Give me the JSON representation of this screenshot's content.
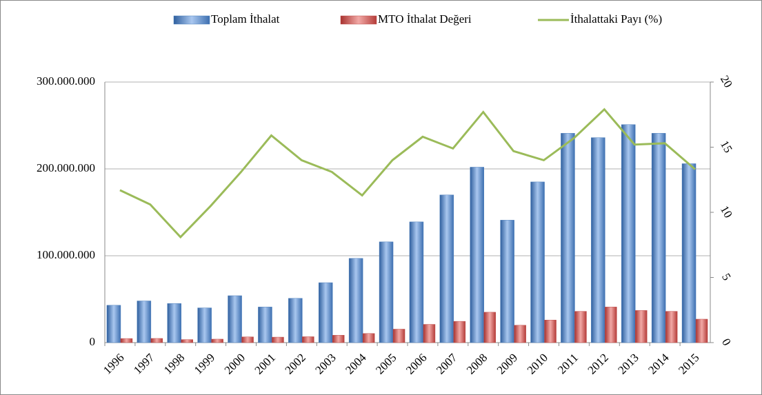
{
  "chart_data": {
    "type": "bar",
    "categories": [
      "1996",
      "1997",
      "1998",
      "1999",
      "2000",
      "2001",
      "2002",
      "2003",
      "2004",
      "2005",
      "2006",
      "2007",
      "2008",
      "2009",
      "2010",
      "2011",
      "2012",
      "2013",
      "2014",
      "2015"
    ],
    "series": [
      {
        "name": "Toplam İthalat",
        "color": "#4f81bd",
        "values": [
          43000000,
          48000000,
          45000000,
          40000000,
          54000000,
          41000000,
          51000000,
          69000000,
          97000000,
          116000000,
          139000000,
          170000000,
          202000000,
          141000000,
          185000000,
          241000000,
          236000000,
          251000000,
          241000000,
          206000000
        ]
      },
      {
        "name": "MTO İthalat Değeri",
        "color": "#c0504d",
        "values": [
          4700000,
          4800000,
          3500000,
          4000000,
          6600000,
          6300000,
          6800000,
          8500000,
          10500000,
          15500000,
          21000000,
          24500000,
          35000000,
          20000000,
          26000000,
          36000000,
          41000000,
          37000000,
          36000000,
          27000000
        ]
      },
      {
        "name": "İthalattaki Payı (%)",
        "color": "#9bbb59",
        "type": "line",
        "axis": "y2",
        "values": [
          11.7,
          10.6,
          8.1,
          10.5,
          13.1,
          15.9,
          14.0,
          13.1,
          11.3,
          14.0,
          15.8,
          14.9,
          17.7,
          14.7,
          14.0,
          15.7,
          17.9,
          15.2,
          15.3,
          13.3
        ]
      }
    ],
    "ylim": [
      0,
      300000000
    ],
    "yticks": [
      0,
      {
        "value": 100000000,
        "label": "100.000.000"
      },
      {
        "value": 200000000,
        "label": "200.000.000"
      },
      {
        "value": 300000000,
        "label": "300.000.000"
      }
    ],
    "y2lim": [
      0,
      20
    ],
    "y2ticks": [
      0,
      5,
      10,
      15,
      20
    ],
    "grid": true,
    "legend": "top"
  }
}
